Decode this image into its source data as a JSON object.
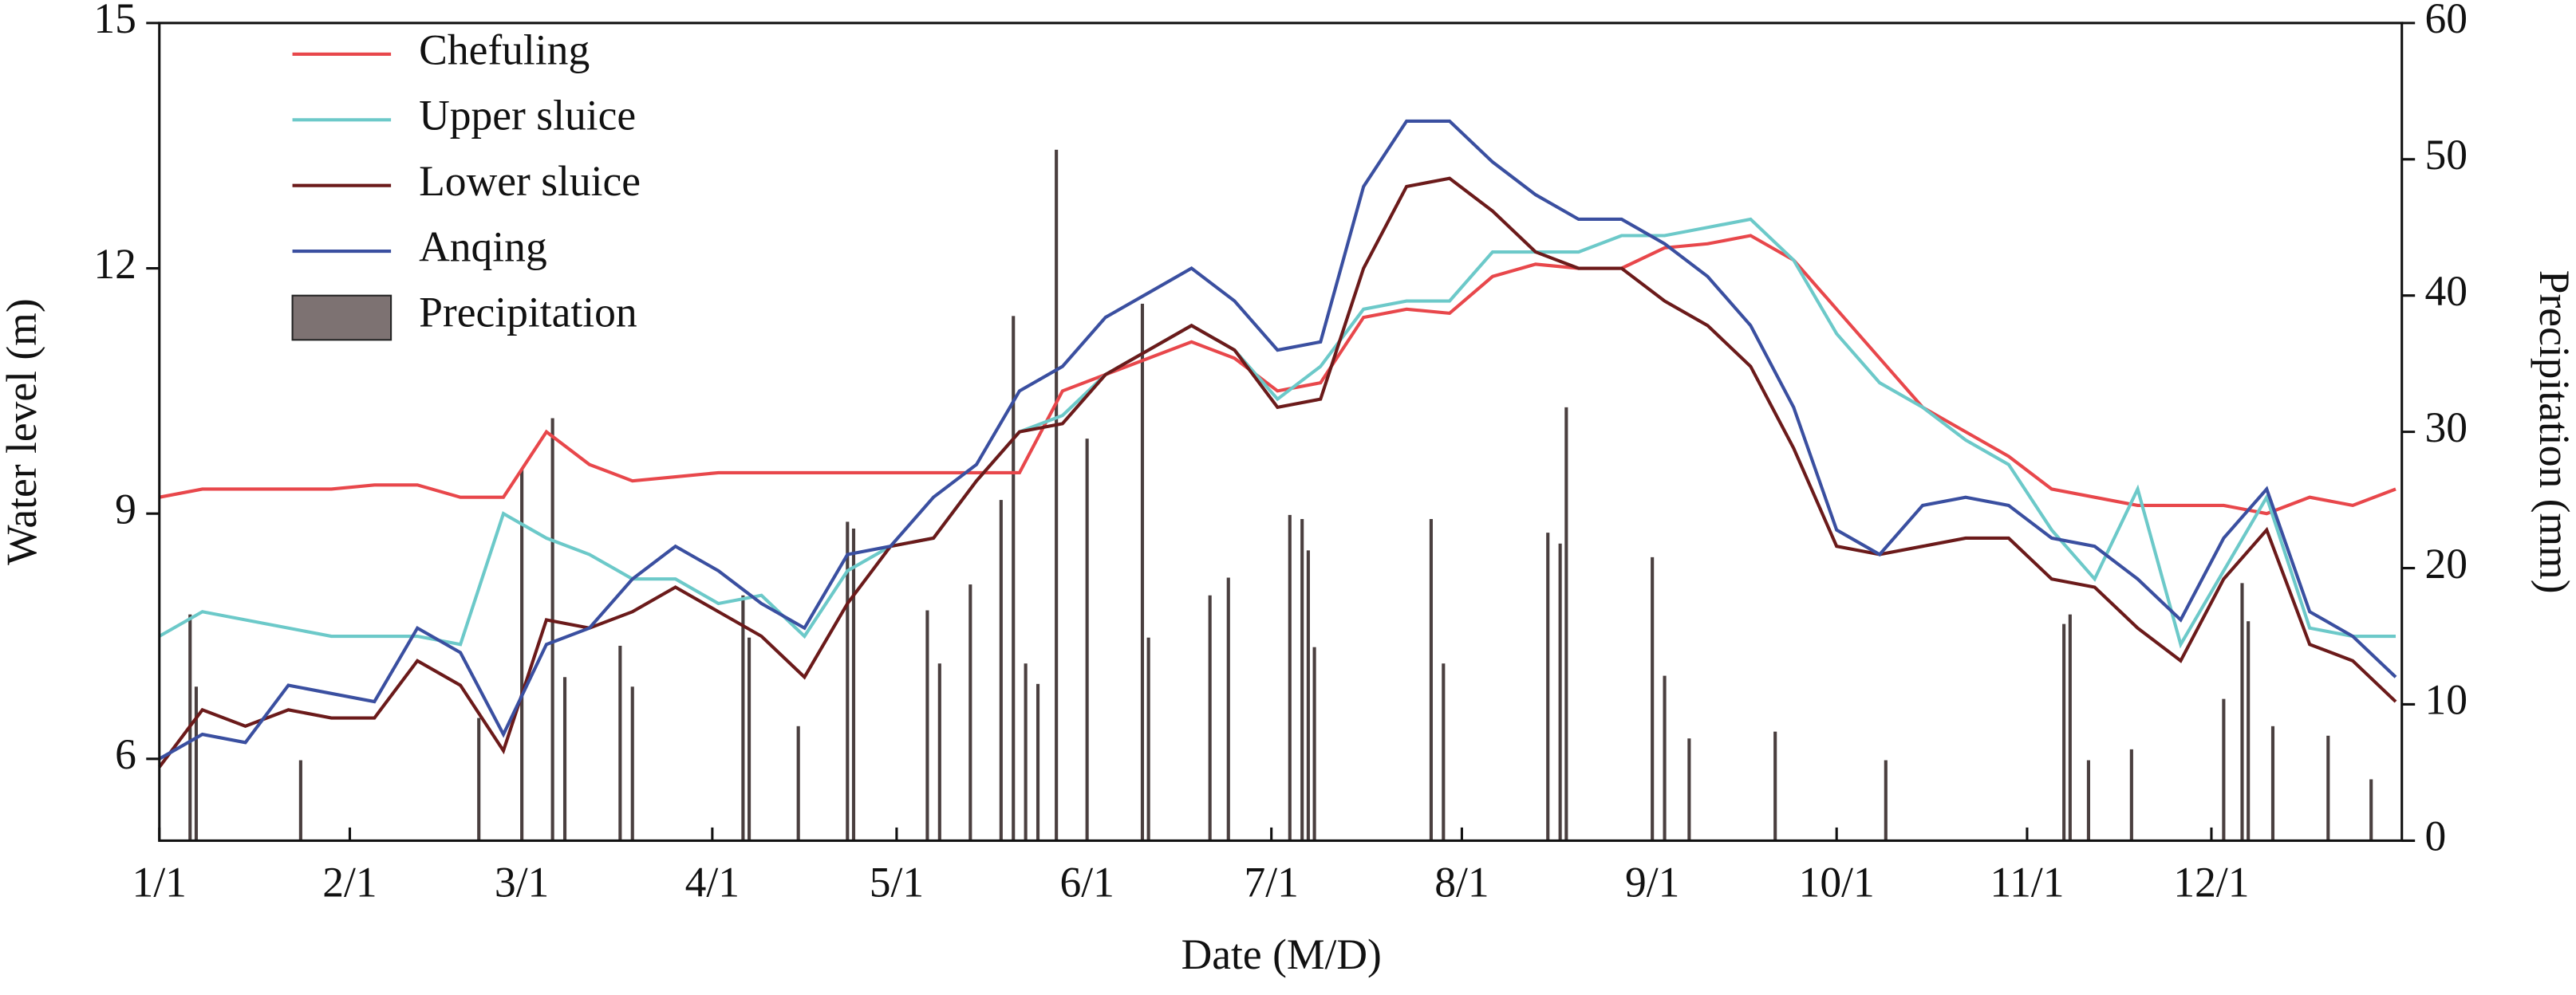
{
  "chart_data": {
    "type": "line",
    "xlabel": "Date (M/D)",
    "ylabel": "Water level (m)",
    "y2label": "Precipitation (mm)",
    "xlim": [
      0,
      365
    ],
    "xticks": [
      {
        "value": 0,
        "label": "1/1"
      },
      {
        "value": 31,
        "label": "2/1"
      },
      {
        "value": 59,
        "label": "3/1"
      },
      {
        "value": 90,
        "label": "4/1"
      },
      {
        "value": 120,
        "label": "5/1"
      },
      {
        "value": 151,
        "label": "6/1"
      },
      {
        "value": 181,
        "label": "7/1"
      },
      {
        "value": 212,
        "label": "8/1"
      },
      {
        "value": 243,
        "label": "9/1"
      },
      {
        "value": 273,
        "label": "10/1"
      },
      {
        "value": 304,
        "label": "11/1"
      },
      {
        "value": 334,
        "label": "12/1"
      }
    ],
    "ylim": [
      5,
      15
    ],
    "yticks": [
      6,
      9,
      12,
      15
    ],
    "y2lim": [
      0,
      60
    ],
    "y2ticks": [
      0,
      10,
      20,
      30,
      40,
      50,
      60
    ],
    "legend": "upper left",
    "x": [
      0,
      7,
      14,
      21,
      28,
      35,
      42,
      49,
      56,
      63,
      70,
      77,
      84,
      91,
      98,
      105,
      112,
      119,
      126,
      133,
      140,
      147,
      154,
      161,
      168,
      175,
      182,
      189,
      196,
      203,
      210,
      217,
      224,
      231,
      238,
      245,
      252,
      259,
      266,
      273,
      280,
      287,
      294,
      301,
      308,
      315,
      322,
      329,
      336,
      343,
      350,
      357,
      364
    ],
    "series": [
      {
        "name": "Chefuling",
        "color": "#e8474b",
        "values": [
          9.2,
          9.3,
          9.3,
          9.3,
          9.3,
          9.35,
          9.35,
          9.2,
          9.2,
          10.0,
          9.6,
          9.4,
          9.45,
          9.5,
          9.5,
          9.5,
          9.5,
          9.5,
          9.5,
          9.5,
          9.5,
          10.5,
          10.7,
          10.9,
          11.1,
          10.9,
          10.5,
          10.6,
          11.4,
          11.5,
          11.45,
          11.9,
          12.05,
          12.0,
          12.0,
          12.25,
          12.3,
          12.4,
          12.1,
          11.5,
          10.9,
          10.3,
          10.0,
          9.7,
          9.3,
          9.2,
          9.1,
          9.1,
          9.1,
          9.0,
          9.2,
          9.1,
          9.3
        ]
      },
      {
        "name": "Upper sluice",
        "color": "#6cc9c9",
        "values": [
          7.5,
          7.8,
          7.7,
          7.6,
          7.5,
          7.5,
          7.5,
          7.4,
          9.0,
          8.7,
          8.5,
          8.2,
          8.2,
          7.9,
          8.0,
          7.5,
          8.3,
          8.6,
          8.7,
          9.4,
          10.0,
          10.2,
          10.7,
          11.0,
          11.3,
          11.0,
          10.4,
          10.8,
          11.5,
          11.6,
          11.6,
          12.2,
          12.2,
          12.2,
          12.4,
          12.4,
          12.5,
          12.6,
          12.1,
          11.2,
          10.6,
          10.3,
          9.9,
          9.6,
          8.8,
          8.2,
          9.3,
          7.4,
          8.3,
          9.2,
          7.6,
          7.5,
          7.5
        ]
      },
      {
        "name": "Lower sluice",
        "color": "#6b1a1a",
        "values": [
          5.9,
          6.6,
          6.4,
          6.6,
          6.5,
          6.5,
          7.2,
          6.9,
          6.1,
          7.7,
          7.6,
          7.8,
          8.1,
          7.8,
          7.5,
          7.0,
          7.9,
          8.6,
          8.7,
          9.4,
          10.0,
          10.1,
          10.7,
          11.0,
          11.3,
          11.0,
          10.3,
          10.4,
          12.0,
          13.0,
          13.1,
          12.7,
          12.2,
          12.0,
          12.0,
          11.6,
          11.3,
          10.8,
          9.8,
          8.6,
          8.5,
          8.6,
          8.7,
          8.7,
          8.2,
          8.1,
          7.6,
          7.2,
          8.2,
          8.8,
          7.4,
          7.2,
          6.7
        ]
      },
      {
        "name": "Anqing",
        "color": "#3a4fa0",
        "values": [
          6.0,
          6.3,
          6.2,
          6.9,
          6.8,
          6.7,
          7.6,
          7.3,
          6.3,
          7.4,
          7.6,
          8.2,
          8.6,
          8.3,
          7.9,
          7.6,
          8.5,
          8.6,
          9.2,
          9.6,
          10.5,
          10.8,
          11.4,
          11.7,
          12.0,
          11.6,
          11.0,
          11.1,
          13.0,
          13.8,
          13.8,
          13.3,
          12.9,
          12.6,
          12.6,
          12.3,
          11.9,
          11.3,
          10.3,
          8.8,
          8.5,
          9.1,
          9.2,
          9.1,
          8.7,
          8.6,
          8.2,
          7.7,
          8.7,
          9.3,
          7.8,
          7.5,
          7.0
        ]
      },
      {
        "name": "Precipitation",
        "color": "#4a3f3f",
        "legend_color": "#7d7272",
        "axis": "y2",
        "x": [
          5,
          6,
          23,
          52,
          59,
          64,
          66,
          75,
          77,
          95,
          96,
          104,
          112,
          113,
          125,
          127,
          132,
          137,
          139,
          141,
          143,
          146,
          151,
          160,
          161,
          171,
          174,
          184,
          186,
          187,
          188,
          207,
          209,
          226,
          228,
          229,
          243,
          245,
          249,
          263,
          281,
          310,
          311,
          314,
          321,
          336,
          339,
          340,
          344,
          353,
          360
        ],
        "values": [
          16.6,
          11.3,
          5.9,
          9.0,
          27.3,
          31.0,
          12.0,
          14.3,
          11.3,
          18.0,
          14.9,
          8.4,
          23.4,
          22.9,
          16.9,
          13.0,
          18.8,
          25.0,
          38.5,
          13.0,
          11.5,
          50.7,
          29.5,
          39.4,
          14.9,
          18.0,
          19.3,
          23.9,
          23.6,
          21.3,
          14.2,
          23.6,
          13.0,
          22.6,
          21.8,
          31.8,
          20.8,
          12.1,
          7.5,
          8.0,
          5.9,
          15.9,
          16.6,
          5.9,
          6.7,
          10.4,
          18.9,
          16.1,
          8.4,
          7.7,
          4.5
        ]
      }
    ]
  }
}
